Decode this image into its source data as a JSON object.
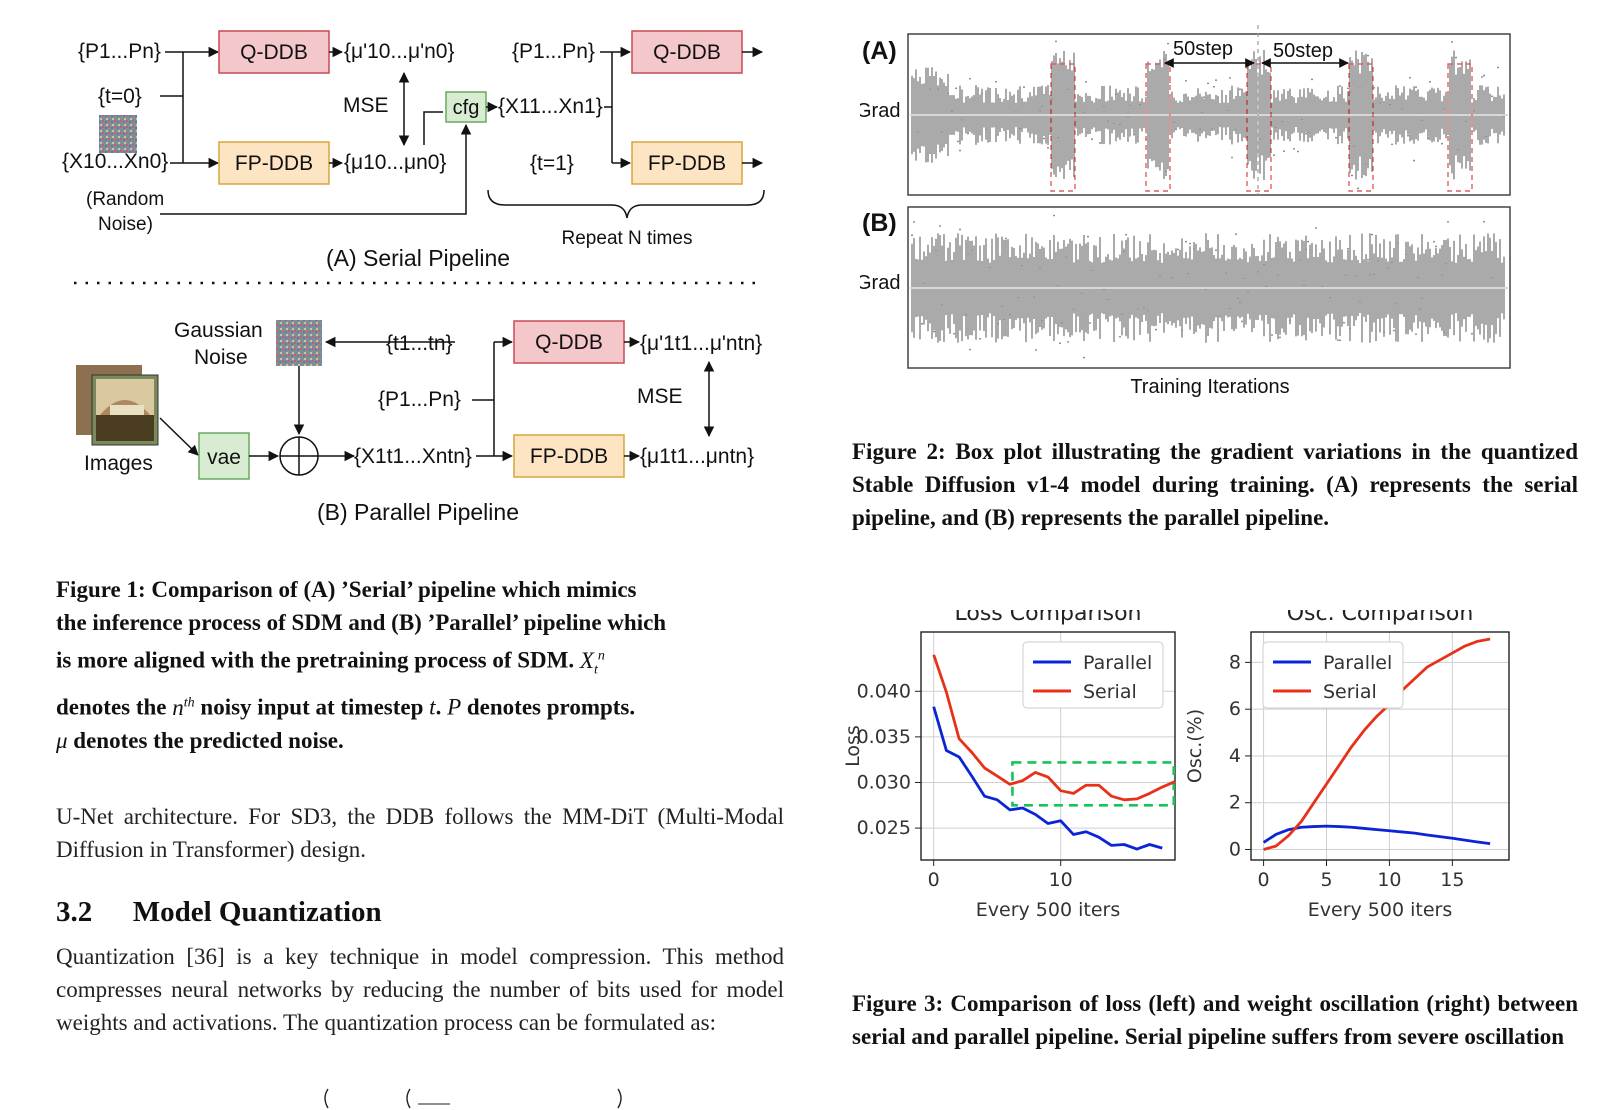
{
  "fig1": {
    "serial": {
      "prompts": "{P1...Pn}",
      "t0": "{t=0}",
      "noise_in": "{X10...Xn0}",
      "random_noise_1": "(Random",
      "random_noise_2": "Noise)",
      "qddb": "Q-DDB",
      "fpddb": "FP-DDB",
      "mu_q": "{μ'10...μ'n0}",
      "mu_fp": "{μ10...μn0}",
      "mse": "MSE",
      "cfg": "cfg",
      "x1": "{X11...Xn1}",
      "prompts2": "{P1...Pn}",
      "t1": "{t=1}",
      "qddb2": "Q-DDB",
      "fpddb2": "FP-DDB",
      "repeat": "Repeat N times",
      "title": "(A) Serial Pipeline"
    },
    "parallel": {
      "gaussian_1": "Gaussian",
      "gaussian_2": "Noise",
      "timesteps": "{t1...tn}",
      "prompts": "{P1...Pn}",
      "images": "Images",
      "vae": "vae",
      "x_noisy": "{X1t1...Xntn}",
      "qddb": "Q-DDB",
      "fpddb": "FP-DDB",
      "mu_q": "{μ'1t1...μ'ntn}",
      "mu_fp": "{μ1t1...μntn}",
      "mse": "MSE",
      "title": "(B) Parallel Pipeline"
    },
    "caption_lines": [
      "Figure 1: Comparison of (A) ’Serial’ pipeline which mimics",
      "the inference process of SDM and (B) ’Parallel’ pipeline which",
      "is more aligned with the pretraining process of SDM.",
      "denotes the",
      "noisy input at timestep",
      "denotes prompts.",
      "denotes the predicted noise."
    ]
  },
  "fig2": {
    "label_a": "(A)",
    "label_b": "(B)",
    "grad_a": "Grad",
    "grad_b": "Grad",
    "step_1": "50step",
    "step_2": "50step",
    "xlabel": "Training Iterations",
    "caption": "Figure 2: Box plot illustrating the gradient variations in the quantized Stable Diffusion v1-4 model during training. (A) represents the serial pipeline, and (B) represents the parallel pipeline."
  },
  "body": {
    "para1": "U-Net architecture. For SD3, the DDB follows the MM-DiT (Multi-Modal Diffusion in Transformer) design.",
    "section_number": "3.2",
    "section_title": "Model Quantization",
    "para2": "Quantization [36] is a key technique in model compression. This method compresses neural networks by reducing the number of bits used for model weights and activations. The quantization process can be formulated as:"
  },
  "fig3": {
    "caption": "Figure 3: Comparison of loss (left) and weight oscillation (right) between serial and parallel pipeline. Serial pipeline suffers from severe oscillation"
  },
  "chart_data": [
    {
      "type": "line",
      "title": "Loss Comparison",
      "xlabel": "Every 500 iters",
      "ylabel": "Loss",
      "xlim": [
        -1,
        19
      ],
      "ylim": [
        0.0215,
        0.0465
      ],
      "xticks": [
        0,
        10
      ],
      "yticks": [
        0.025,
        0.03,
        0.035,
        0.04
      ],
      "ytick_labels": [
        "0.025",
        "0.030",
        "0.035",
        "0.040"
      ],
      "grid": true,
      "legend": "top-right",
      "series": [
        {
          "name": "Parallel",
          "color": "#0b24d6",
          "x": [
            0,
            1,
            2,
            3,
            4,
            5,
            6,
            7,
            8,
            9,
            10,
            11,
            12,
            13,
            14,
            15,
            16,
            17,
            18
          ],
          "values": [
            0.0383,
            0.0335,
            0.0328,
            0.0307,
            0.0285,
            0.0281,
            0.027,
            0.0272,
            0.0265,
            0.0255,
            0.0258,
            0.0243,
            0.0246,
            0.024,
            0.0231,
            0.0232,
            0.0227,
            0.0232,
            0.0228
          ]
        },
        {
          "name": "Serial",
          "color": "#e8311a",
          "x": [
            0,
            1,
            2,
            3,
            4,
            5,
            6,
            7,
            8,
            9,
            10,
            11,
            12,
            13,
            14,
            15,
            16,
            17,
            18,
            19
          ],
          "values": [
            0.044,
            0.0399,
            0.0348,
            0.0333,
            0.0316,
            0.0307,
            0.0298,
            0.0302,
            0.0311,
            0.0306,
            0.0291,
            0.0288,
            0.0297,
            0.0297,
            0.0285,
            0.0281,
            0.0282,
            0.0288,
            0.0295,
            0.0301
          ]
        }
      ]
    },
    {
      "type": "line",
      "title": "Osc. Comparison",
      "xlabel": "Every 500 iters",
      "ylabel": "Osc.(%)",
      "xlim": [
        -1,
        19.5
      ],
      "ylim": [
        -0.45,
        9.3
      ],
      "xticks": [
        0,
        5,
        10,
        15
      ],
      "yticks": [
        0,
        2,
        4,
        6,
        8
      ],
      "grid": true,
      "legend": "top-left",
      "series": [
        {
          "name": "Parallel",
          "color": "#0b24d6",
          "x": [
            0,
            1,
            2,
            3,
            4,
            5,
            6,
            7,
            8,
            9,
            10,
            11,
            12,
            13,
            14,
            15,
            16,
            17,
            18
          ],
          "values": [
            0.3,
            0.65,
            0.85,
            0.95,
            0.98,
            1.0,
            0.98,
            0.95,
            0.9,
            0.85,
            0.8,
            0.75,
            0.7,
            0.62,
            0.55,
            0.48,
            0.4,
            0.32,
            0.25
          ]
        },
        {
          "name": "Serial",
          "color": "#e8311a",
          "x": [
            0,
            1,
            2,
            3,
            4,
            5,
            6,
            7,
            8,
            9,
            10,
            11,
            12,
            13,
            14,
            15,
            16,
            17,
            18
          ],
          "values": [
            0.0,
            0.15,
            0.6,
            1.2,
            2.0,
            2.8,
            3.6,
            4.4,
            5.1,
            5.7,
            6.2,
            6.8,
            7.3,
            7.8,
            8.1,
            8.4,
            8.7,
            8.9,
            9.0
          ]
        }
      ]
    }
  ]
}
